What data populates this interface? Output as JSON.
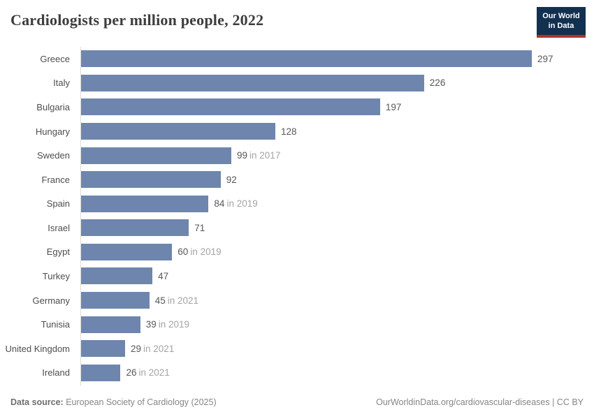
{
  "header": {
    "title": "Cardiologists per million people, 2022",
    "logo": {
      "line1": "Our World",
      "line2": "in Data"
    }
  },
  "chart_data": {
    "type": "bar",
    "orientation": "horizontal",
    "title": "Cardiologists per million people, 2022",
    "categories": [
      "Greece",
      "Italy",
      "Bulgaria",
      "Hungary",
      "Sweden",
      "France",
      "Spain",
      "Israel",
      "Egypt",
      "Turkey",
      "Germany",
      "Tunisia",
      "United Kingdom",
      "Ireland"
    ],
    "values": [
      297,
      226,
      197,
      128,
      99,
      92,
      84,
      71,
      60,
      47,
      45,
      39,
      29,
      26
    ],
    "value_notes": [
      "",
      "",
      "",
      "",
      "in 2017",
      "",
      "in 2019",
      "",
      "in 2019",
      "",
      "in 2021",
      "in 2019",
      "in 2021",
      "in 2021"
    ],
    "xlim": [
      0,
      297
    ],
    "grid": false,
    "legend": "none",
    "bar_color": "#6e86ae"
  },
  "footer": {
    "source_label": "Data source:",
    "source_text": "European Society of Cardiology (2025)",
    "right_text": "OurWorldinData.org/cardiovascular-diseases | CC BY"
  },
  "colors": {
    "bar": "#6e86ae",
    "axis_line": "#dcdcdc",
    "title_text": "#3d3d3d",
    "label_text": "#4e4e4e",
    "value_text": "#585858",
    "note_text": "#a4a4a4",
    "footer_text": "#868686",
    "logo_bg": "#12304f",
    "logo_accent": "#b13326"
  }
}
